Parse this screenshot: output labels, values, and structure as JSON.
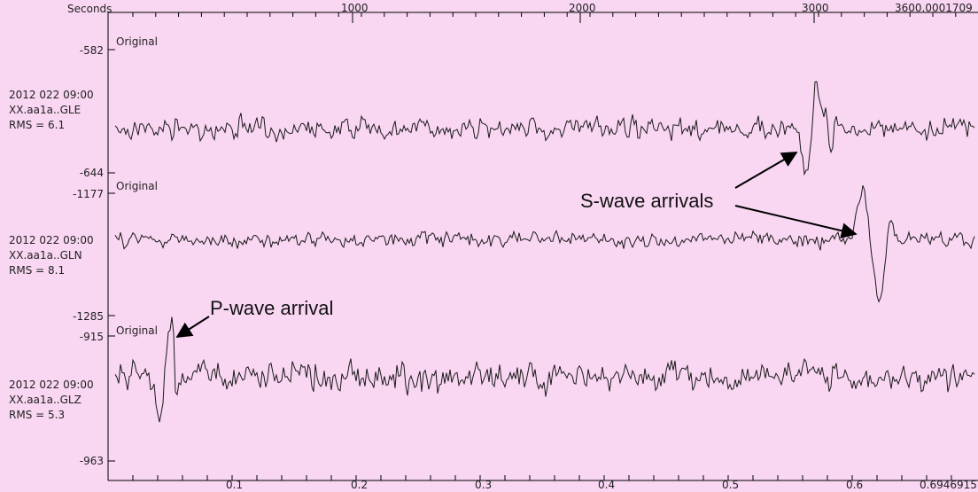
{
  "top_axis": {
    "label": "Seconds",
    "ticks": [
      "1000",
      "2000",
      "3000",
      "3600.0001709"
    ]
  },
  "bottom_axis": {
    "ticks": [
      "0.1",
      "0.2",
      "0.3",
      "0.4",
      "0.5",
      "0.6",
      "0.6946915"
    ]
  },
  "traces": [
    {
      "tag": "Original",
      "ymax": "-582",
      "ymin": "-644",
      "time": "2012 022 09:00",
      "station": "XX.aa1a..GLE",
      "rms": "RMS = 6.1"
    },
    {
      "tag": "Original",
      "ymax": "-1177",
      "ymin": "-1285",
      "time": "2012 022 09:00",
      "station": "XX.aa1a..GLN",
      "rms": "RMS = 8.1"
    },
    {
      "tag": "Original",
      "ymax": "-915",
      "ymin": "-963",
      "time": "2012 022 09:00",
      "station": "XX.aa1a..GLZ",
      "rms": "RMS = 5.3"
    }
  ],
  "annotations": {
    "s_wave": "S-wave arrivals",
    "p_wave": "P-wave arrival"
  },
  "colors": {
    "background": "#f9d6f2",
    "trace": "#1a1a1a"
  }
}
